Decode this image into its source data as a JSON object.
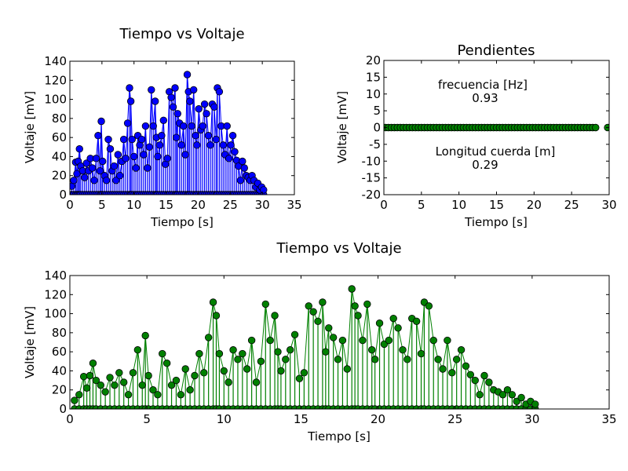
{
  "chart_data": [
    {
      "id": "top-left",
      "type": "line",
      "title": "Tiempo vs Voltaje",
      "xlabel": "Tiempo [s]",
      "ylabel": "Voltaje [mV]",
      "xlim": [
        0,
        35
      ],
      "ylim": [
        0,
        140
      ],
      "xticks": [
        0,
        5,
        10,
        15,
        20,
        25,
        30,
        35
      ],
      "yticks": [
        0,
        20,
        40,
        60,
        80,
        100,
        120,
        140
      ],
      "series": [
        {
          "color": "#0000ff",
          "marker": "circle",
          "x": [
            0.3,
            0.6,
            0.9,
            1.1,
            1.3,
            1.5,
            1.7,
            2.0,
            2.3,
            2.6,
            2.9,
            3.2,
            3.5,
            3.8,
            4.1,
            4.4,
            4.7,
            4.9,
            5.1,
            5.4,
            5.7,
            6.0,
            6.3,
            6.6,
            6.9,
            7.2,
            7.5,
            7.8,
            8.1,
            8.4,
            8.7,
            9.0,
            9.3,
            9.5,
            9.7,
            10.0,
            10.3,
            10.6,
            10.9,
            11.2,
            11.5,
            11.8,
            12.1,
            12.4,
            12.7,
            13.0,
            13.3,
            13.5,
            13.7,
            14.0,
            14.3,
            14.6,
            14.9,
            15.2,
            15.5,
            15.8,
            16.1,
            16.4,
            16.6,
            16.8,
            17.1,
            17.4,
            17.7,
            18.0,
            18.3,
            18.5,
            18.7,
            19.0,
            19.3,
            19.6,
            19.8,
            20.1,
            20.4,
            20.7,
            21.0,
            21.3,
            21.6,
            21.9,
            22.2,
            22.5,
            22.8,
            23.0,
            23.3,
            23.6,
            23.9,
            24.2,
            24.5,
            24.8,
            25.1,
            25.4,
            25.7,
            26.0,
            26.3,
            26.6,
            26.9,
            27.2,
            27.5,
            27.8,
            28.1,
            28.4,
            28.7,
            29.0,
            29.3,
            29.6,
            29.9,
            30.2
          ],
          "y": [
            9,
            15,
            34,
            22,
            35,
            48,
            30,
            25,
            18,
            33,
            25,
            38,
            28,
            15,
            38,
            62,
            25,
            77,
            35,
            20,
            15,
            58,
            48,
            25,
            30,
            15,
            42,
            20,
            35,
            58,
            38,
            75,
            112,
            98,
            58,
            40,
            28,
            62,
            52,
            58,
            42,
            72,
            28,
            50,
            110,
            72,
            98,
            60,
            40,
            52,
            62,
            78,
            32,
            38,
            108,
            102,
            92,
            112,
            60,
            85,
            75,
            52,
            72,
            42,
            126,
            108,
            98,
            72,
            110,
            62,
            52,
            90,
            68,
            72,
            95,
            85,
            62,
            52,
            95,
            92,
            58,
            112,
            108,
            72,
            52,
            42,
            72,
            38,
            52,
            62,
            45,
            36,
            30,
            15,
            35,
            28,
            20,
            18,
            15,
            20,
            15,
            8,
            12,
            5,
            8,
            5
          ]
        }
      ]
    },
    {
      "id": "top-right",
      "type": "scatter",
      "title": "Pendientes",
      "xlabel": "Tiempo [s]",
      "ylabel": "Voltaje [mV]",
      "xlim": [
        0,
        30
      ],
      "ylim": [
        -20,
        20
      ],
      "xticks": [
        0,
        5,
        10,
        15,
        20,
        25,
        30
      ],
      "yticks": [
        -20,
        -15,
        -10,
        -5,
        0,
        5,
        10,
        15,
        20
      ],
      "series": [
        {
          "color": "#008000",
          "marker": "circle",
          "x": [
            0.2,
            0.6,
            1.0,
            1.4,
            1.8,
            2.2,
            2.6,
            3.0,
            3.4,
            3.8,
            4.2,
            4.6,
            5.0,
            5.4,
            5.8,
            6.2,
            6.6,
            7.0,
            7.4,
            7.8,
            8.2,
            8.6,
            9.0,
            9.4,
            9.8,
            10.2,
            10.6,
            11.0,
            11.4,
            11.8,
            12.2,
            12.6,
            13.0,
            13.4,
            13.8,
            14.2,
            14.6,
            15.0,
            15.4,
            15.8,
            16.2,
            16.6,
            17.0,
            17.4,
            17.8,
            18.2,
            18.6,
            19.0,
            19.4,
            19.8,
            20.2,
            20.6,
            21.0,
            21.4,
            21.8,
            22.2,
            22.6,
            23.0,
            23.4,
            23.8,
            24.2,
            24.6,
            25.0,
            25.4,
            25.8,
            26.2,
            26.6,
            27.0,
            27.4,
            27.8,
            28.2,
            29.8
          ],
          "y": [
            0,
            0,
            0,
            0,
            0,
            0,
            0,
            0,
            0,
            0,
            0,
            0,
            0,
            0,
            0,
            0,
            0,
            0,
            0,
            0,
            0,
            0,
            0,
            0,
            0,
            0,
            0,
            0,
            0,
            0,
            0,
            0,
            0,
            0,
            0,
            0,
            0,
            0,
            0,
            0,
            0,
            0,
            0,
            0,
            0,
            0,
            0,
            0,
            0,
            0,
            0,
            0,
            0,
            0,
            0,
            0,
            0,
            0,
            0,
            0,
            0,
            0,
            0,
            0,
            0,
            0,
            0,
            0,
            0,
            0,
            0,
            0
          ]
        }
      ],
      "annotations": [
        {
          "label": "frecuencia [Hz]",
          "value": "0.93"
        },
        {
          "label": "Longitud cuerda [m]",
          "value": "0.29"
        }
      ]
    },
    {
      "id": "bottom",
      "type": "line",
      "title": "Tiempo vs Voltaje",
      "xlabel": "Tiempo [s]",
      "ylabel": "Voltaje [mV]",
      "xlim": [
        0,
        35
      ],
      "ylim": [
        0,
        140
      ],
      "xticks": [
        0,
        5,
        10,
        15,
        20,
        25,
        30,
        35
      ],
      "yticks": [
        0,
        20,
        40,
        60,
        80,
        100,
        120,
        140
      ],
      "series": [
        {
          "color": "#008000",
          "marker": "circle",
          "x": [
            0.3,
            0.6,
            0.9,
            1.1,
            1.3,
            1.5,
            1.7,
            2.0,
            2.3,
            2.6,
            2.9,
            3.2,
            3.5,
            3.8,
            4.1,
            4.4,
            4.7,
            4.9,
            5.1,
            5.4,
            5.7,
            6.0,
            6.3,
            6.6,
            6.9,
            7.2,
            7.5,
            7.8,
            8.1,
            8.4,
            8.7,
            9.0,
            9.3,
            9.5,
            9.7,
            10.0,
            10.3,
            10.6,
            10.9,
            11.2,
            11.5,
            11.8,
            12.1,
            12.4,
            12.7,
            13.0,
            13.3,
            13.5,
            13.7,
            14.0,
            14.3,
            14.6,
            14.9,
            15.2,
            15.5,
            15.8,
            16.1,
            16.4,
            16.6,
            16.8,
            17.1,
            17.4,
            17.7,
            18.0,
            18.3,
            18.5,
            18.7,
            19.0,
            19.3,
            19.6,
            19.8,
            20.1,
            20.4,
            20.7,
            21.0,
            21.3,
            21.6,
            21.9,
            22.2,
            22.5,
            22.8,
            23.0,
            23.3,
            23.6,
            23.9,
            24.2,
            24.5,
            24.8,
            25.1,
            25.4,
            25.7,
            26.0,
            26.3,
            26.6,
            26.9,
            27.2,
            27.5,
            27.8,
            28.1,
            28.4,
            28.7,
            29.0,
            29.3,
            29.6,
            29.9,
            30.2
          ],
          "y": [
            9,
            15,
            34,
            22,
            35,
            48,
            30,
            25,
            18,
            33,
            25,
            38,
            28,
            15,
            38,
            62,
            25,
            77,
            35,
            20,
            15,
            58,
            48,
            25,
            30,
            15,
            42,
            20,
            35,
            58,
            38,
            75,
            112,
            98,
            58,
            40,
            28,
            62,
            52,
            58,
            42,
            72,
            28,
            50,
            110,
            72,
            98,
            60,
            40,
            52,
            62,
            78,
            32,
            38,
            108,
            102,
            92,
            112,
            60,
            85,
            75,
            52,
            72,
            42,
            126,
            108,
            98,
            72,
            110,
            62,
            52,
            90,
            68,
            72,
            95,
            85,
            62,
            52,
            95,
            92,
            58,
            112,
            108,
            72,
            52,
            42,
            72,
            38,
            52,
            62,
            45,
            36,
            30,
            15,
            35,
            28,
            20,
            18,
            15,
            20,
            15,
            8,
            12,
            5,
            8,
            5
          ]
        }
      ]
    }
  ]
}
